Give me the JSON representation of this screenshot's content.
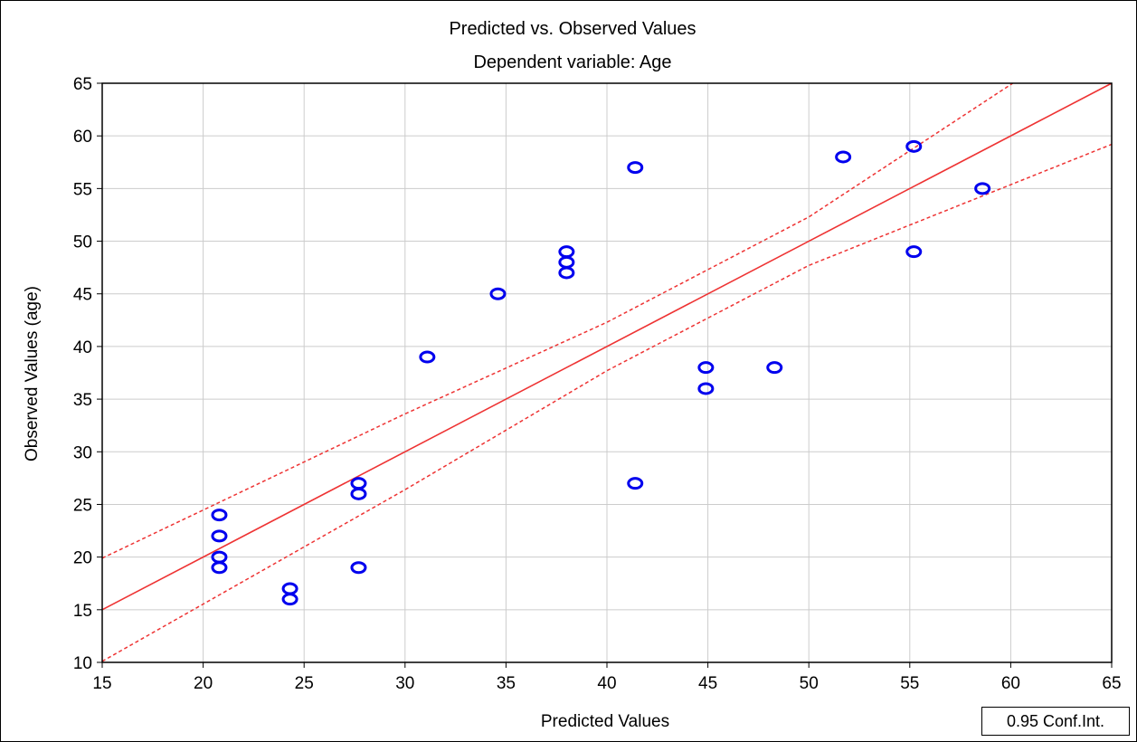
{
  "chart_data": {
    "type": "scatter",
    "title": "Predicted vs. Observed Values",
    "subtitle": "Dependent variable: Age",
    "xlabel": "Predicted Values",
    "ylabel": "Observed Values (age)",
    "xlim": [
      15,
      65
    ],
    "ylim": [
      10,
      65
    ],
    "xticks": [
      15,
      20,
      25,
      30,
      35,
      40,
      45,
      50,
      55,
      60,
      65
    ],
    "yticks": [
      10,
      15,
      20,
      25,
      30,
      35,
      40,
      45,
      50,
      55,
      60,
      65
    ],
    "grid": true,
    "points": [
      {
        "x": 20.8,
        "y": 24
      },
      {
        "x": 20.8,
        "y": 22
      },
      {
        "x": 20.8,
        "y": 20
      },
      {
        "x": 20.8,
        "y": 19
      },
      {
        "x": 24.3,
        "y": 17
      },
      {
        "x": 24.3,
        "y": 16
      },
      {
        "x": 27.7,
        "y": 27
      },
      {
        "x": 27.7,
        "y": 26
      },
      {
        "x": 27.7,
        "y": 19
      },
      {
        "x": 31.1,
        "y": 39
      },
      {
        "x": 34.6,
        "y": 45
      },
      {
        "x": 38.0,
        "y": 49
      },
      {
        "x": 38.0,
        "y": 48
      },
      {
        "x": 38.0,
        "y": 47
      },
      {
        "x": 41.4,
        "y": 57
      },
      {
        "x": 41.4,
        "y": 27
      },
      {
        "x": 44.9,
        "y": 38
      },
      {
        "x": 44.9,
        "y": 36
      },
      {
        "x": 48.3,
        "y": 38
      },
      {
        "x": 51.7,
        "y": 58
      },
      {
        "x": 55.2,
        "y": 59
      },
      {
        "x": 55.2,
        "y": 49
      },
      {
        "x": 58.6,
        "y": 55
      }
    ],
    "fit_line": {
      "x": [
        15,
        65
      ],
      "y": [
        15,
        65
      ]
    },
    "conf_upper": {
      "x": [
        15,
        30,
        40,
        50,
        60.1
      ],
      "y": [
        19.9,
        33.6,
        42.3,
        52.3,
        65
      ]
    },
    "conf_lower": {
      "x": [
        15,
        30,
        40,
        50,
        65
      ],
      "y": [
        10.1,
        26.4,
        37.7,
        47.7,
        59.2
      ]
    },
    "legend": {
      "label": "0.95 Conf.Int.",
      "placement": "bottom-right"
    },
    "colors": {
      "points": "#0000ee",
      "fit": "#ee3333",
      "grid": "#cccccc",
      "axis": "#000000"
    }
  }
}
